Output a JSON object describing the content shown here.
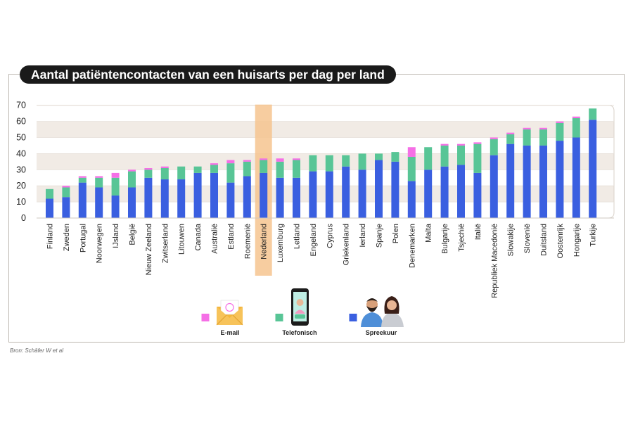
{
  "title": "Aantal patiëntencontacten van een huisarts per dag per land",
  "source": "Bron:    Schäfer W et al",
  "colors": {
    "spreekuur": "#3a5fe0",
    "telefonisch": "#58c596",
    "email": "#f56fe6",
    "band": "#f1ebe5",
    "highlight": "#f6c48f"
  },
  "chart_data": {
    "type": "bar",
    "stacked": true,
    "title": "Aantal patiëntencontacten van een huisarts per dag per land",
    "xlabel": "",
    "ylabel": "",
    "ylim": [
      0,
      70
    ],
    "yticks": [
      0,
      10,
      20,
      30,
      40,
      50,
      60,
      70
    ],
    "highlight": "Nederland",
    "legend_position": "bottom",
    "categories": [
      "Finland",
      "Zweden",
      "Portugal",
      "Noorwegen",
      "IJsland",
      "België",
      "Nieuw Zeeland",
      "Zwitserland",
      "Litouwen",
      "Canada",
      "Australië",
      "Estland",
      "Roemenië",
      "Nederland",
      "Luxemburg",
      "Letland",
      "Engeland",
      "Cyprus",
      "Griekenland",
      "Ierland",
      "Spanje",
      "Polen",
      "Denemarken",
      "Malta",
      "Bulgarije",
      "Tsjechië",
      "Italië",
      "Republiek Macedonië",
      "Slowakije",
      "Slovenië",
      "Duitsland",
      "Oostenrijk",
      "Hongarije",
      "Turkije"
    ],
    "series": [
      {
        "name": "Spreekuur",
        "key": "spreekuur",
        "values": [
          12,
          13,
          22,
          19,
          14,
          19,
          25,
          24,
          24,
          28,
          28,
          22,
          26,
          28,
          25,
          25,
          29,
          29,
          32,
          30,
          36,
          35,
          23,
          30,
          32,
          33,
          28,
          39,
          46,
          45,
          45,
          48,
          50,
          61
        ]
      },
      {
        "name": "Telefonisch",
        "key": "telefonisch",
        "values": [
          6,
          6,
          3,
          6,
          11,
          10,
          5,
          7,
          8,
          4,
          5,
          12,
          9,
          8,
          10,
          11,
          10,
          10,
          7,
          10,
          4,
          6,
          15,
          14,
          13,
          12,
          18,
          10,
          6,
          10,
          10,
          11,
          12,
          7
        ]
      },
      {
        "name": "E-mail",
        "key": "email",
        "values": [
          0,
          1,
          1,
          1,
          3,
          1,
          1,
          1,
          0,
          0,
          1,
          2,
          1,
          1,
          2,
          1,
          0,
          0,
          0,
          0,
          0,
          0,
          6,
          0,
          1,
          1,
          1,
          1,
          1,
          1,
          1,
          1,
          1,
          0
        ]
      }
    ],
    "legend": [
      {
        "label": "E-mail",
        "key": "email",
        "icon": "envelope-icon"
      },
      {
        "label": "Telefonisch",
        "key": "telefonisch",
        "icon": "smartphone-icon"
      },
      {
        "label": "Spreekuur",
        "key": "spreekuur",
        "icon": "doctors-icon"
      }
    ]
  }
}
